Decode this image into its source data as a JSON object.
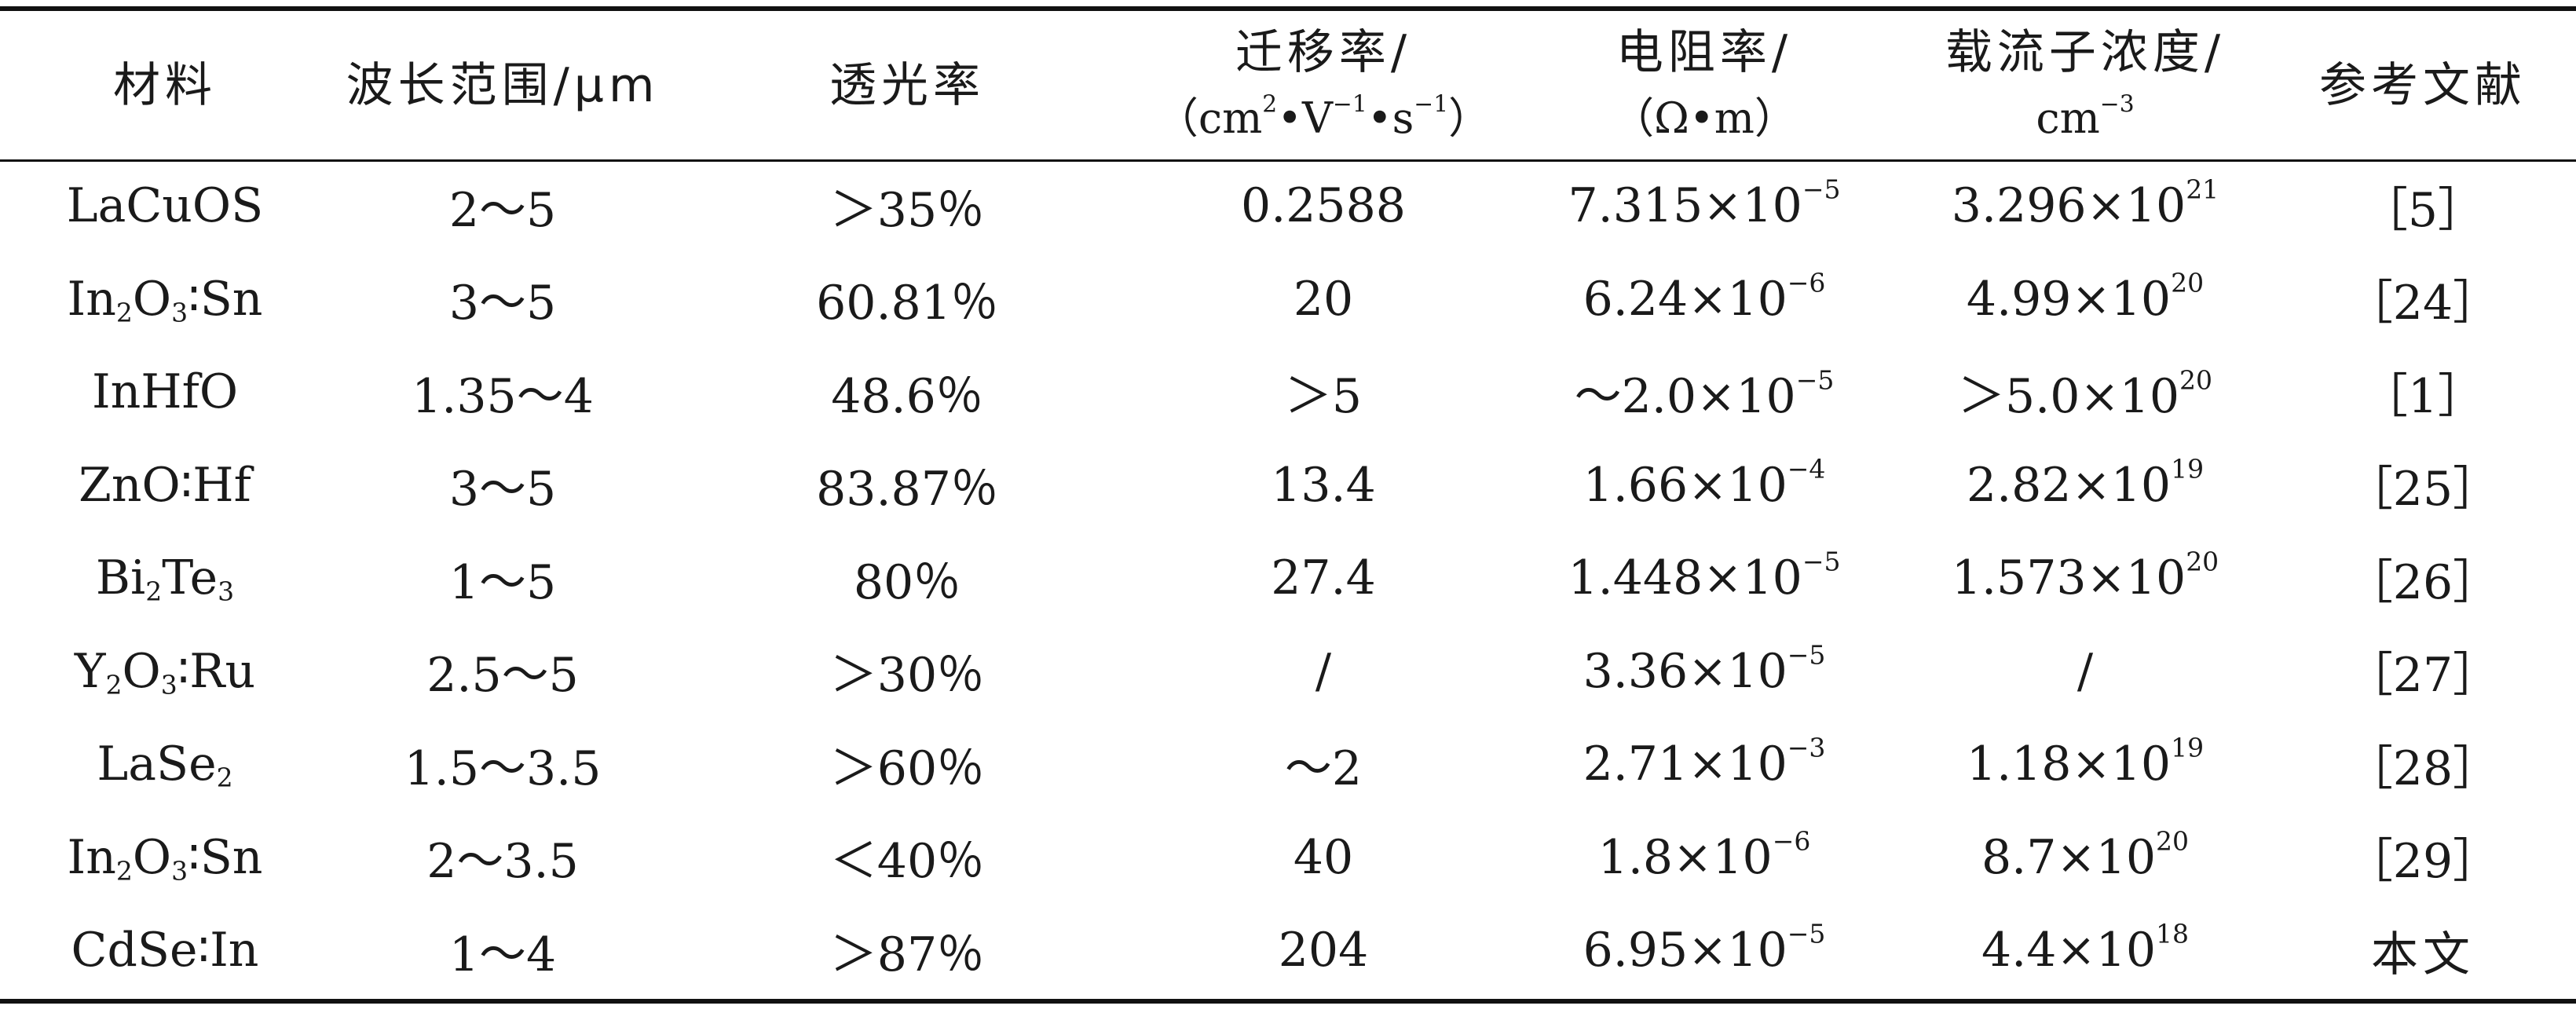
{
  "headers": {
    "material": "材料",
    "wavelength": "波长范围/μm",
    "transmittance": "透光率",
    "mobility_line1": "迁移率/",
    "mobility_line2_pre": "（cm",
    "mobility_line2_exp1": "2",
    "mobility_line2_mid1": "•V",
    "mobility_line2_exp2": "−1",
    "mobility_line2_mid2": "•s",
    "mobility_line2_exp3": "−1",
    "mobility_line2_post": "）",
    "resistivity_line1": "电阻率/",
    "resistivity_line2": "（Ω•m）",
    "carrier_line1": "载流子浓度/",
    "carrier_line2_base": "cm",
    "carrier_line2_exp": "−3",
    "reference": "参考文献"
  },
  "rows": [
    {
      "material": {
        "a": "LaCuOS",
        "sub1": "",
        "b": "",
        "sub2": "",
        "c": ""
      },
      "wavelength": "2～5",
      "transmittance": "＞35％",
      "mobility": "0.2588",
      "resistivity": {
        "base": "7.315×10",
        "exp": "−5"
      },
      "carrier": {
        "base": "3.296×10",
        "exp": "21"
      },
      "reference": "［5］"
    },
    {
      "material": {
        "a": "In",
        "sub1": "2",
        "b": "O",
        "sub2": "3",
        "c": "∶Sn"
      },
      "wavelength": "3～5",
      "transmittance": "60.81％",
      "mobility": "20",
      "resistivity": {
        "base": "6.24×10",
        "exp": "−6"
      },
      "carrier": {
        "base": "4.99×10",
        "exp": "20"
      },
      "reference": "［24］"
    },
    {
      "material": {
        "a": "InHfO",
        "sub1": "",
        "b": "",
        "sub2": "",
        "c": ""
      },
      "wavelength": "1.35～4",
      "transmittance": "48.6％",
      "mobility": "＞5",
      "resistivity": {
        "base": "～2.0×10",
        "exp": "−5"
      },
      "carrier": {
        "base": "＞5.0×10",
        "exp": "20"
      },
      "reference": "［1］"
    },
    {
      "material": {
        "a": "ZnO∶Hf",
        "sub1": "",
        "b": "",
        "sub2": "",
        "c": ""
      },
      "wavelength": "3～5",
      "transmittance": "83.87％",
      "mobility": "13.4",
      "resistivity": {
        "base": "1.66×10",
        "exp": "−4"
      },
      "carrier": {
        "base": "2.82×10",
        "exp": "19"
      },
      "reference": "［25］"
    },
    {
      "material": {
        "a": "Bi",
        "sub1": "2",
        "b": "Te",
        "sub2": "3",
        "c": ""
      },
      "wavelength": "1～5",
      "transmittance": "80％",
      "mobility": "27.4",
      "resistivity": {
        "base": "1.448×10",
        "exp": "−5"
      },
      "carrier": {
        "base": "1.573×10",
        "exp": "20"
      },
      "reference": "［26］"
    },
    {
      "material": {
        "a": "Y",
        "sub1": "2",
        "b": "O",
        "sub2": "3",
        "c": "∶Ru"
      },
      "wavelength": "2.5～5",
      "transmittance": "＞30％",
      "mobility": "/",
      "resistivity": {
        "base": "3.36×10",
        "exp": "−5"
      },
      "carrier": {
        "base": "/",
        "exp": ""
      },
      "reference": "［27］"
    },
    {
      "material": {
        "a": "LaSe",
        "sub1": "2",
        "b": "",
        "sub2": "",
        "c": ""
      },
      "wavelength": "1.5～3.5",
      "transmittance": "＞60％",
      "mobility": "～2",
      "resistivity": {
        "base": "2.71×10",
        "exp": "−3"
      },
      "carrier": {
        "base": "1.18×10",
        "exp": "19"
      },
      "reference": "［28］"
    },
    {
      "material": {
        "a": "In",
        "sub1": "2",
        "b": "O",
        "sub2": "3",
        "c": "∶Sn"
      },
      "wavelength": "2～3.5",
      "transmittance": "＜40％",
      "mobility": "40",
      "resistivity": {
        "base": "1.8×10",
        "exp": "−6"
      },
      "carrier": {
        "base": "8.7×10",
        "exp": "20"
      },
      "reference": "［29］"
    },
    {
      "material": {
        "a": "CdSe∶In",
        "sub1": "",
        "b": "",
        "sub2": "",
        "c": ""
      },
      "wavelength": "1～4",
      "transmittance": "＞87％",
      "mobility": "204",
      "resistivity": {
        "base": "6.95×10",
        "exp": "−5"
      },
      "carrier": {
        "base": "4.4×10",
        "exp": "18"
      },
      "reference": "本文"
    }
  ]
}
